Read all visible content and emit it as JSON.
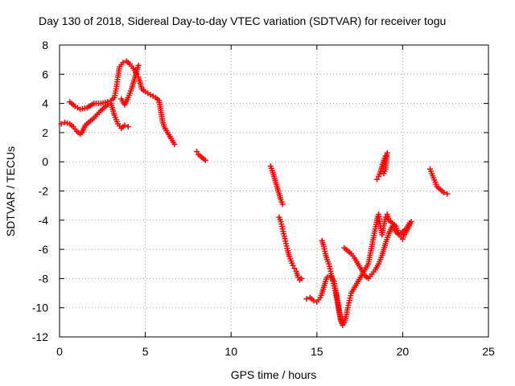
{
  "chart_data": {
    "type": "scatter",
    "title": "Day 130 of 2018, Sidereal Day-to-day VTEC variation (SDTVAR) for receiver togu",
    "xlabel": "GPS time / hours",
    "ylabel": "SDTVAR / TECUs",
    "xlim": [
      0,
      25
    ],
    "ylim": [
      -12,
      8
    ],
    "xticks": [
      0,
      5,
      10,
      15,
      20,
      25
    ],
    "yticks": [
      -12,
      -10,
      -8,
      -6,
      -4,
      -2,
      0,
      2,
      4,
      6,
      8
    ],
    "grid": true,
    "marker": "+",
    "series": [
      {
        "name": "trace-a",
        "color": "#ff0000",
        "points": [
          [
            0.1,
            2.6
          ],
          [
            0.3,
            2.7
          ],
          [
            0.6,
            2.6
          ],
          [
            0.8,
            2.4
          ],
          [
            1.0,
            2.1
          ],
          [
            1.2,
            1.9
          ],
          [
            1.3,
            2.0
          ],
          [
            1.5,
            2.5
          ],
          [
            1.7,
            2.7
          ],
          [
            2.0,
            3.0
          ],
          [
            2.4,
            3.5
          ],
          [
            2.8,
            3.9
          ],
          [
            3.0,
            4.0
          ],
          [
            3.2,
            3.2
          ],
          [
            3.4,
            2.6
          ],
          [
            3.6,
            2.3
          ],
          [
            3.8,
            2.5
          ],
          [
            4.0,
            2.4
          ]
        ]
      },
      {
        "name": "trace-b",
        "color": "#ff0000",
        "points": [
          [
            0.6,
            4.1
          ],
          [
            0.9,
            3.8
          ],
          [
            1.2,
            3.6
          ],
          [
            1.6,
            3.7
          ],
          [
            2.0,
            4.0
          ],
          [
            2.4,
            4.0
          ],
          [
            2.8,
            4.1
          ],
          [
            3.0,
            4.2
          ],
          [
            3.2,
            4.4
          ],
          [
            3.3,
            5.0
          ],
          [
            3.4,
            5.8
          ],
          [
            3.5,
            6.5
          ],
          [
            3.7,
            6.8
          ],
          [
            3.9,
            6.9
          ],
          [
            4.1,
            6.7
          ],
          [
            4.3,
            6.4
          ],
          [
            4.5,
            6.0
          ],
          [
            4.6,
            5.8
          ],
          [
            4.7,
            5.4
          ],
          [
            4.8,
            5.0
          ],
          [
            5.0,
            4.8
          ],
          [
            5.3,
            4.6
          ],
          [
            5.6,
            4.4
          ],
          [
            5.8,
            4.2
          ],
          [
            5.9,
            3.5
          ],
          [
            6.0,
            2.8
          ],
          [
            6.1,
            2.4
          ],
          [
            6.3,
            2.0
          ],
          [
            6.5,
            1.6
          ],
          [
            6.7,
            1.2
          ]
        ]
      },
      {
        "name": "trace-c",
        "color": "#ff0000",
        "points": [
          [
            3.6,
            4.3
          ],
          [
            3.8,
            3.9
          ],
          [
            4.0,
            4.4
          ],
          [
            4.2,
            5.0
          ],
          [
            4.4,
            5.8
          ],
          [
            4.6,
            6.6
          ]
        ]
      },
      {
        "name": "trace-d",
        "color": "#ff0000",
        "points": [
          [
            8.0,
            0.7
          ],
          [
            8.1,
            0.5
          ],
          [
            8.2,
            0.4
          ],
          [
            8.3,
            0.3
          ],
          [
            8.4,
            0.2
          ],
          [
            8.5,
            0.1
          ]
        ]
      },
      {
        "name": "trace-e",
        "color": "#ff0000",
        "points": [
          [
            12.3,
            -0.3
          ],
          [
            12.4,
            -0.6
          ],
          [
            12.5,
            -1.0
          ],
          [
            12.6,
            -1.4
          ],
          [
            12.7,
            -1.8
          ],
          [
            12.8,
            -2.2
          ],
          [
            12.9,
            -2.6
          ],
          [
            13.0,
            -2.9
          ]
        ]
      },
      {
        "name": "trace-f",
        "color": "#ff0000",
        "points": [
          [
            12.8,
            -3.8
          ],
          [
            12.9,
            -4.1
          ],
          [
            13.0,
            -4.6
          ],
          [
            13.1,
            -5.1
          ],
          [
            13.2,
            -5.6
          ],
          [
            13.3,
            -6.1
          ],
          [
            13.4,
            -6.5
          ],
          [
            13.5,
            -6.8
          ],
          [
            13.6,
            -7.1
          ],
          [
            13.7,
            -7.3
          ],
          [
            13.8,
            -7.5
          ],
          [
            13.9,
            -7.9
          ],
          [
            14.0,
            -8.1
          ],
          [
            14.1,
            -8.0
          ]
        ]
      },
      {
        "name": "trace-g",
        "color": "#ff0000",
        "points": [
          [
            14.4,
            -9.4
          ],
          [
            14.6,
            -9.3
          ],
          [
            14.8,
            -9.5
          ],
          [
            15.0,
            -9.6
          ],
          [
            15.2,
            -9.3
          ],
          [
            15.3,
            -9.0
          ],
          [
            15.4,
            -8.6
          ],
          [
            15.5,
            -8.2
          ],
          [
            15.6,
            -7.9
          ],
          [
            15.8,
            -7.8
          ],
          [
            16.0,
            -8.2
          ],
          [
            16.1,
            -8.8
          ],
          [
            16.2,
            -9.5
          ],
          [
            16.3,
            -10.3
          ],
          [
            16.4,
            -10.9
          ],
          [
            16.5,
            -11.2
          ],
          [
            16.6,
            -11.0
          ],
          [
            16.7,
            -10.6
          ],
          [
            16.8,
            -10.0
          ],
          [
            16.9,
            -9.5
          ],
          [
            17.0,
            -9.0
          ],
          [
            17.2,
            -8.6
          ],
          [
            17.4,
            -8.2
          ],
          [
            17.6,
            -7.8
          ],
          [
            17.8,
            -7.4
          ],
          [
            18.0,
            -7.0
          ],
          [
            18.1,
            -6.4
          ],
          [
            18.2,
            -5.8
          ],
          [
            18.3,
            -5.2
          ],
          [
            18.4,
            -4.6
          ],
          [
            18.5,
            -4.0
          ],
          [
            18.6,
            -3.6
          ],
          [
            18.7,
            -4.4
          ],
          [
            18.8,
            -5.0
          ],
          [
            18.9,
            -4.4
          ],
          [
            19.0,
            -3.8
          ],
          [
            19.1,
            -3.6
          ],
          [
            19.2,
            -4.0
          ],
          [
            19.4,
            -4.2
          ],
          [
            19.6,
            -4.4
          ],
          [
            19.8,
            -5.0
          ],
          [
            20.0,
            -5.3
          ],
          [
            20.1,
            -5.0
          ],
          [
            20.3,
            -4.6
          ],
          [
            20.5,
            -4.1
          ]
        ]
      },
      {
        "name": "trace-h",
        "color": "#ff0000",
        "points": [
          [
            15.3,
            -5.4
          ],
          [
            15.4,
            -5.8
          ],
          [
            15.5,
            -6.3
          ],
          [
            15.6,
            -6.7
          ],
          [
            15.7,
            -7.0
          ],
          [
            15.8,
            -7.5
          ],
          [
            15.9,
            -8.0
          ],
          [
            16.0,
            -8.5
          ],
          [
            16.1,
            -9.0
          ],
          [
            16.2,
            -9.6
          ],
          [
            16.3,
            -10.2
          ],
          [
            16.4,
            -10.8
          ],
          [
            16.5,
            -11.1
          ]
        ]
      },
      {
        "name": "trace-i",
        "color": "#ff0000",
        "points": [
          [
            16.6,
            -5.9
          ],
          [
            16.8,
            -6.1
          ],
          [
            17.0,
            -6.3
          ],
          [
            17.2,
            -6.6
          ],
          [
            17.4,
            -7.0
          ],
          [
            17.6,
            -7.4
          ],
          [
            17.8,
            -7.8
          ],
          [
            18.0,
            -8.0
          ],
          [
            18.2,
            -7.7
          ],
          [
            18.4,
            -7.4
          ],
          [
            18.6,
            -7.0
          ],
          [
            18.8,
            -6.4
          ],
          [
            19.0,
            -5.6
          ],
          [
            19.2,
            -4.9
          ],
          [
            19.4,
            -4.4
          ],
          [
            19.6,
            -4.8
          ],
          [
            19.8,
            -5.0
          ],
          [
            20.0,
            -4.8
          ],
          [
            20.2,
            -4.6
          ],
          [
            20.4,
            -4.2
          ]
        ]
      },
      {
        "name": "trace-j",
        "color": "#ff0000",
        "points": [
          [
            18.5,
            -1.2
          ],
          [
            18.6,
            -1.0
          ],
          [
            18.7,
            -0.7
          ],
          [
            18.8,
            -0.3
          ],
          [
            18.9,
            0.1
          ],
          [
            19.0,
            0.4
          ],
          [
            19.1,
            0.6
          ],
          [
            19.0,
            -0.5
          ],
          [
            18.9,
            -0.8
          ]
        ]
      },
      {
        "name": "trace-k",
        "color": "#ff0000",
        "points": [
          [
            21.6,
            -0.5
          ],
          [
            21.7,
            -0.8
          ],
          [
            21.8,
            -1.1
          ],
          [
            21.9,
            -1.4
          ],
          [
            22.0,
            -1.7
          ],
          [
            22.2,
            -1.9
          ],
          [
            22.4,
            -2.1
          ],
          [
            22.6,
            -2.2
          ]
        ]
      }
    ]
  }
}
